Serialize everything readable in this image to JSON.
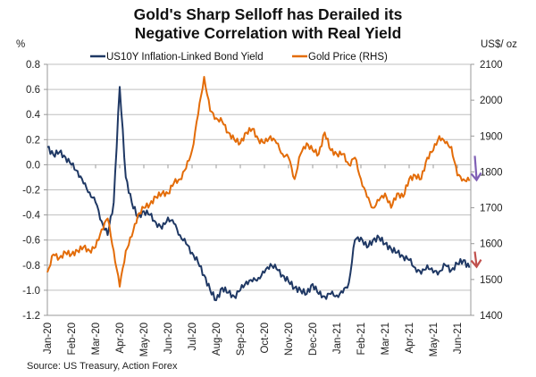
{
  "chart_data": {
    "type": "line",
    "title": [
      "Gold's Sharp Selloff has Derailed its",
      "Negative Correlation with Real Yield"
    ],
    "source": "Source: US Treasury, Action Forex",
    "left_axis": {
      "unit": "%",
      "range": [
        -1.2,
        0.8
      ],
      "ticks": [
        "0.8",
        "0.6",
        "0.4",
        "0.2",
        "0.0",
        "-0.2",
        "-0.4",
        "-0.6",
        "-0.8",
        "-1.0",
        "-1.2"
      ],
      "tick_values": [
        0.8,
        0.6,
        0.4,
        0.2,
        0.0,
        -0.2,
        -0.4,
        -0.6,
        -0.8,
        -1.0,
        -1.2
      ]
    },
    "right_axis": {
      "unit": "US$/ oz",
      "range": [
        1400,
        2100
      ],
      "ticks": [
        "2100",
        "2000",
        "1900",
        "1800",
        "1700",
        "1600",
        "1500",
        "1400"
      ],
      "tick_values": [
        2100,
        2000,
        1900,
        1800,
        1700,
        1600,
        1500,
        1400
      ]
    },
    "x_axis": {
      "categories": [
        "Jan-20",
        "Feb-20",
        "Mar-20",
        "Apr-20",
        "May-20",
        "Jun-20",
        "Jul-20",
        "Aug-20",
        "Sep-20",
        "Oct-20",
        "Nov-20",
        "Dec-20",
        "Jan-21",
        "Feb-21",
        "Mar-21",
        "Apr-21",
        "May-21",
        "Jun-21"
      ],
      "range_months": [
        0,
        17.6
      ]
    },
    "grid": true,
    "legend_position": "top",
    "series": [
      {
        "name": "US10Y Inflation-Linked Bond Yield",
        "axis": "left",
        "color": "#1f3864",
        "x_months": [
          0,
          0.25,
          0.5,
          0.75,
          1,
          1.25,
          1.5,
          1.75,
          2,
          2.25,
          2.5,
          2.75,
          3,
          3.25,
          3.5,
          3.75,
          4,
          4.25,
          4.5,
          4.75,
          5,
          5.25,
          5.5,
          5.75,
          6,
          6.25,
          6.5,
          6.75,
          7,
          7.25,
          7.5,
          7.75,
          8,
          8.25,
          8.5,
          8.75,
          9,
          9.25,
          9.5,
          9.75,
          10,
          10.25,
          10.5,
          10.75,
          11,
          11.25,
          11.5,
          11.75,
          12,
          12.25,
          12.5,
          12.75,
          13,
          13.25,
          13.5,
          13.75,
          14,
          14.25,
          14.5,
          14.75,
          15,
          15.25,
          15.5,
          15.75,
          16,
          16.25,
          16.5,
          16.75,
          17,
          17.25,
          17.5
        ],
        "values": [
          0.14,
          0.08,
          0.1,
          0.06,
          0.0,
          -0.05,
          -0.15,
          -0.22,
          -0.3,
          -0.45,
          -0.56,
          -0.3,
          0.62,
          -0.1,
          -0.3,
          -0.42,
          -0.37,
          -0.4,
          -0.46,
          -0.51,
          -0.42,
          -0.47,
          -0.56,
          -0.63,
          -0.7,
          -0.78,
          -0.88,
          -1.0,
          -1.08,
          -0.98,
          -1.02,
          -1.05,
          -1.0,
          -0.93,
          -0.93,
          -0.9,
          -0.86,
          -0.79,
          -0.83,
          -0.88,
          -0.93,
          -0.98,
          -1.0,
          -1.03,
          -0.95,
          -1.03,
          -1.05,
          -1.03,
          -1.04,
          -1.02,
          -0.94,
          -0.6,
          -0.58,
          -0.66,
          -0.6,
          -0.58,
          -0.63,
          -0.67,
          -0.7,
          -0.73,
          -0.76,
          -0.82,
          -0.87,
          -0.8,
          -0.86,
          -0.85,
          -0.8,
          -0.84,
          -0.79,
          -0.76,
          -0.82
        ]
      },
      {
        "name": "Gold Price (RHS)",
        "axis": "right",
        "color": "#e36c09",
        "x_months": [
          0,
          0.25,
          0.5,
          0.75,
          1,
          1.25,
          1.5,
          1.75,
          2,
          2.25,
          2.5,
          2.75,
          3,
          3.25,
          3.5,
          3.75,
          4,
          4.25,
          4.5,
          4.75,
          5,
          5.25,
          5.5,
          5.75,
          6,
          6.25,
          6.5,
          6.75,
          7,
          7.25,
          7.5,
          7.75,
          8,
          8.25,
          8.5,
          8.75,
          9,
          9.25,
          9.5,
          9.75,
          10,
          10.25,
          10.5,
          10.75,
          11,
          11.25,
          11.5,
          11.75,
          12,
          12.25,
          12.5,
          12.75,
          13,
          13.25,
          13.5,
          13.75,
          14,
          14.25,
          14.5,
          14.75,
          15,
          15.25,
          15.5,
          15.75,
          16,
          16.25,
          16.5,
          16.75,
          17,
          17.25,
          17.5
        ],
        "values": [
          1520,
          1570,
          1560,
          1575,
          1570,
          1580,
          1590,
          1580,
          1590,
          1640,
          1670,
          1580,
          1480,
          1580,
          1620,
          1680,
          1700,
          1710,
          1730,
          1740,
          1740,
          1770,
          1780,
          1810,
          1860,
          1960,
          2065,
          1970,
          1950,
          1940,
          1910,
          1890,
          1880,
          1910,
          1920,
          1890,
          1880,
          1900,
          1880,
          1850,
          1840,
          1780,
          1850,
          1880,
          1860,
          1850,
          1910,
          1860,
          1850,
          1850,
          1820,
          1840,
          1780,
          1730,
          1700,
          1720,
          1740,
          1700,
          1740,
          1730,
          1780,
          1790,
          1780,
          1840,
          1860,
          1900,
          1880,
          1870,
          1790,
          1780,
          1775
        ]
      }
    ],
    "annotations": [
      {
        "type": "arrow-down",
        "series": "Gold Price (RHS)",
        "color": "#7f5fb5"
      },
      {
        "type": "arrow-down",
        "series": "US10Y Inflation-Linked Bond Yield",
        "color": "#c0504d"
      }
    ]
  }
}
